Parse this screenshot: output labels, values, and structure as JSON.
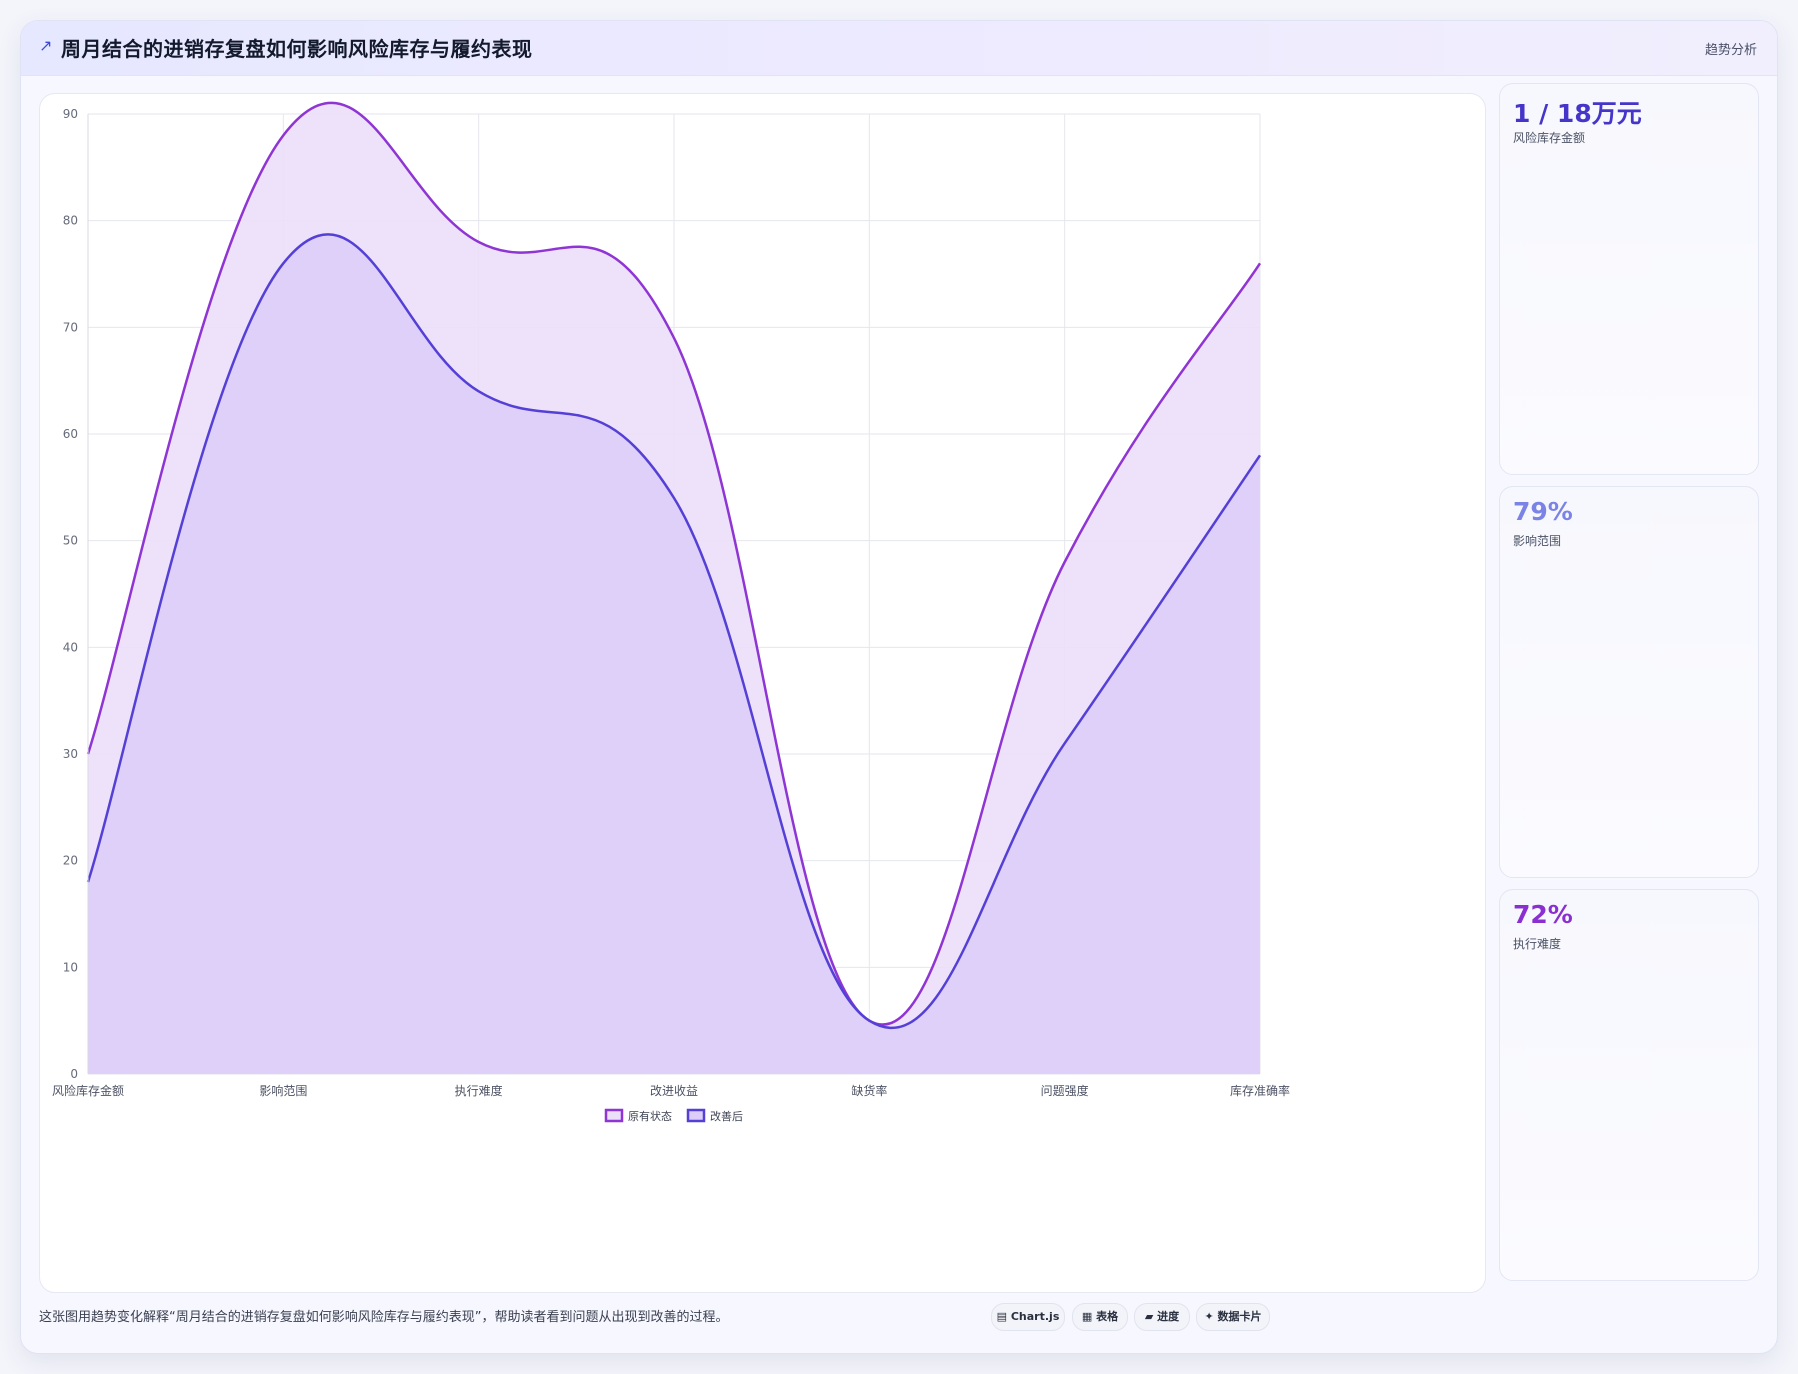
{
  "header": {
    "icon": "trend-arrow-icon",
    "title": "周月结合的进销存复盘如何影响风险库存与履约表现",
    "tag": "趋势分析"
  },
  "metrics": [
    {
      "value": "1 / 18万元",
      "label": "风险库存金额",
      "color": "#4535c9"
    },
    {
      "value": "79%",
      "label": "影响范围",
      "color": "#7b84e6"
    },
    {
      "value": "72%",
      "label": "执行难度",
      "color": "#8a2fd0"
    }
  ],
  "footer": {
    "description": "这张图用趋势变化解释“周月结合的进销存复盘如何影响风险库存与履约表现”，帮助读者看到问题从出现到改善的过程。",
    "chips": [
      {
        "label": "Chart.js",
        "icon": "chart-icon"
      },
      {
        "label": "表格",
        "icon": "table-icon"
      },
      {
        "label": "进度",
        "icon": "progress-icon"
      },
      {
        "label": "数据卡片",
        "icon": "sparkle-icon"
      }
    ]
  },
  "chart_data": {
    "type": "area",
    "categories": [
      "风险库存金额",
      "影响范围",
      "执行难度",
      "改进收益",
      "缺货率",
      "问题强度",
      "库存准确率"
    ],
    "series": [
      {
        "name": "原有状态",
        "values": [
          30,
          88,
          78,
          69,
          5,
          48,
          76
        ],
        "color": "#8e35d4",
        "fill": "#ecdff9"
      },
      {
        "name": "改善后",
        "values": [
          18,
          76,
          64,
          54,
          5,
          31,
          58
        ],
        "color": "#5540d6",
        "fill": "#dccef8"
      }
    ],
    "ylim": [
      0,
      90
    ],
    "yticks": [
      0,
      10,
      20,
      30,
      40,
      50,
      60,
      70,
      80,
      90
    ],
    "grid": true,
    "legend": "bottom",
    "xlabel": "",
    "ylabel": "",
    "title": ""
  }
}
